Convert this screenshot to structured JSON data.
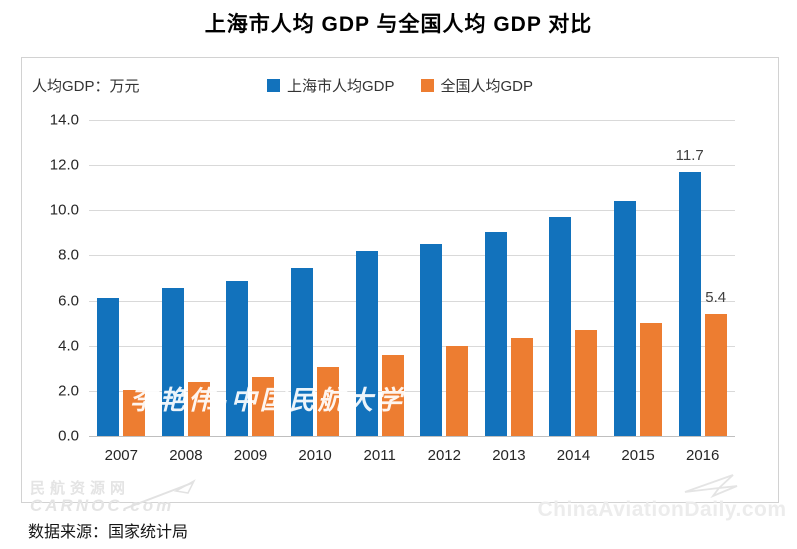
{
  "page": {
    "title": "上海市人均 GDP 与全国人均 GDP 对比",
    "source": "数据来源：国家统计局"
  },
  "chart_data": {
    "type": "bar",
    "title": "上海市人均 GDP 与全国人均 GDP 对比",
    "unit_label": "人均GDP：万元",
    "categories": [
      "2007",
      "2008",
      "2009",
      "2010",
      "2011",
      "2012",
      "2013",
      "2014",
      "2015",
      "2016"
    ],
    "series": [
      {
        "name": "上海市人均GDP",
        "color": "#1272BC",
        "values": [
          6.1,
          6.55,
          6.85,
          7.45,
          8.2,
          8.5,
          9.05,
          9.7,
          10.4,
          11.7
        ]
      },
      {
        "name": "全国人均GDP",
        "color": "#ED7D31",
        "values": [
          2.05,
          2.4,
          2.6,
          3.05,
          3.6,
          4.0,
          4.35,
          4.7,
          5.0,
          5.4
        ]
      }
    ],
    "ylim": [
      0,
      14
    ],
    "ytick_step": 2,
    "yticks": [
      "0.0",
      "2.0",
      "4.0",
      "6.0",
      "8.0",
      "10.0",
      "12.0",
      "14.0"
    ],
    "grid": true,
    "legend_position": "top-center",
    "data_labels": [
      {
        "series": 0,
        "category": "2016",
        "text": "11.7"
      },
      {
        "series": 1,
        "category": "2016",
        "text": "5.4"
      }
    ],
    "source": "数据来源：国家统计局"
  },
  "watermarks": {
    "center": "李艳伟-中国民航大学",
    "bottom_left_line1": "民航资源网",
    "bottom_left_line2": "CARNOC.com",
    "bottom_right": "ChinaAviationDaily.com"
  }
}
